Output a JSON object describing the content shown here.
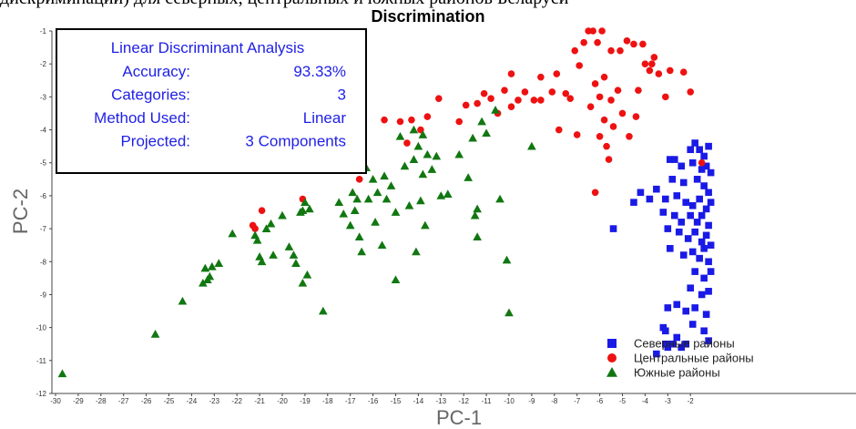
{
  "caption": "дискриминации) для северных, центральных и южных районов Беларуси",
  "chart_data": {
    "type": "scatter",
    "title": "Discrimination",
    "xlabel": "PC-1",
    "ylabel": "PC-2",
    "xlim": [
      -30,
      -1
    ],
    "ylim": [
      -12,
      -1
    ],
    "x_ticks": [
      -30,
      -29,
      -28,
      -27,
      -26,
      -25,
      -24,
      -23,
      -22,
      -21,
      -20,
      -19,
      -18,
      -17,
      -16,
      -15,
      -14,
      -13,
      -12,
      -11,
      -10,
      -9,
      -8,
      -7,
      -6,
      -5,
      -4,
      -3,
      -2
    ],
    "y_ticks": [
      -1,
      -2,
      -3,
      -4,
      -5,
      -6,
      -7,
      -8,
      -9,
      -10,
      -11,
      -12
    ],
    "grid": false,
    "legend_position": "bottom-right",
    "info_box": {
      "title": "Linear Discriminant Analysis",
      "rows": [
        {
          "label": "Accuracy:",
          "value": "93.33%"
        },
        {
          "label": "Categories:",
          "value": "3"
        },
        {
          "label": "Method Used:",
          "value": "Linear"
        },
        {
          "label": "Projected:",
          "value": "3 Components"
        }
      ]
    },
    "series": [
      {
        "name": "Северные районы",
        "marker": "square",
        "color": "#1a1ae6",
        "points": [
          [
            -2.9,
            -4.9
          ],
          [
            -2.7,
            -4.9
          ],
          [
            -2.4,
            -5.1
          ],
          [
            -2.0,
            -4.6
          ],
          [
            -1.8,
            -4.4
          ],
          [
            -1.6,
            -4.6
          ],
          [
            -1.4,
            -4.8
          ],
          [
            -1.2,
            -4.5
          ],
          [
            -1.9,
            -5.0
          ],
          [
            -1.5,
            -5.2
          ],
          [
            -1.3,
            -5.1
          ],
          [
            -1.1,
            -5.3
          ],
          [
            -2.8,
            -5.5
          ],
          [
            -2.3,
            -5.6
          ],
          [
            -1.7,
            -5.5
          ],
          [
            -1.4,
            -5.7
          ],
          [
            -1.2,
            -5.9
          ],
          [
            -3.5,
            -5.8
          ],
          [
            -3.1,
            -6.1
          ],
          [
            -2.6,
            -6.0
          ],
          [
            -2.2,
            -6.2
          ],
          [
            -1.9,
            -6.3
          ],
          [
            -1.6,
            -6.1
          ],
          [
            -1.3,
            -6.4
          ],
          [
            -1.1,
            -6.2
          ],
          [
            -4.2,
            -5.9
          ],
          [
            -3.8,
            -6.1
          ],
          [
            -4.5,
            -6.2
          ],
          [
            -3.2,
            -6.5
          ],
          [
            -2.7,
            -6.6
          ],
          [
            -2.4,
            -6.8
          ],
          [
            -2.0,
            -6.6
          ],
          [
            -1.7,
            -6.8
          ],
          [
            -1.5,
            -6.6
          ],
          [
            -1.2,
            -6.9
          ],
          [
            -3.0,
            -7.0
          ],
          [
            -2.5,
            -7.1
          ],
          [
            -2.1,
            -7.3
          ],
          [
            -1.8,
            -7.1
          ],
          [
            -1.5,
            -7.4
          ],
          [
            -1.3,
            -7.2
          ],
          [
            -1.1,
            -7.5
          ],
          [
            -5.4,
            -7.0
          ],
          [
            -2.9,
            -7.6
          ],
          [
            -2.3,
            -7.8
          ],
          [
            -1.9,
            -7.7
          ],
          [
            -1.6,
            -7.9
          ],
          [
            -1.4,
            -7.6
          ],
          [
            -1.2,
            -8.0
          ],
          [
            -1.8,
            -8.3
          ],
          [
            -1.4,
            -8.5
          ],
          [
            -1.1,
            -8.3
          ],
          [
            -2.0,
            -8.8
          ],
          [
            -1.5,
            -9.0
          ],
          [
            -1.2,
            -8.9
          ],
          [
            -3.0,
            -9.4
          ],
          [
            -2.6,
            -9.3
          ],
          [
            -2.2,
            -9.5
          ],
          [
            -1.8,
            -9.4
          ],
          [
            -1.3,
            -9.6
          ],
          [
            -1.9,
            -9.9
          ],
          [
            -1.4,
            -10.1
          ],
          [
            -3.2,
            -10.0
          ],
          [
            -3.1,
            -10.1
          ],
          [
            -3.1,
            -10.5
          ],
          [
            -2.8,
            -10.5
          ],
          [
            -2.6,
            -10.3
          ],
          [
            -2.4,
            -10.6
          ],
          [
            -2.2,
            -10.5
          ],
          [
            -3.5,
            -10.8
          ],
          [
            -3.0,
            -10.6
          ],
          [
            -1.2,
            -10.4
          ]
        ]
      },
      {
        "name": "Центральные районы",
        "marker": "circle",
        "color": "#ee1111",
        "points": [
          [
            -21.3,
            -6.9
          ],
          [
            -21.2,
            -7.0
          ],
          [
            -20.9,
            -6.45
          ],
          [
            -19.1,
            -6.1
          ],
          [
            -16.6,
            -5.5
          ],
          [
            -15.5,
            -3.7
          ],
          [
            -14.8,
            -3.75
          ],
          [
            -14.3,
            -3.7
          ],
          [
            -14.5,
            -4.4
          ],
          [
            -13.9,
            -4.0
          ],
          [
            -13.6,
            -3.6
          ],
          [
            -13.1,
            -3.05
          ],
          [
            -12.2,
            -3.75
          ],
          [
            -11.9,
            -3.25
          ],
          [
            -11.4,
            -3.2
          ],
          [
            -11.1,
            -2.9
          ],
          [
            -10.8,
            -3.05
          ],
          [
            -10.5,
            -3.5
          ],
          [
            -10.2,
            -2.8
          ],
          [
            -9.9,
            -3.3
          ],
          [
            -9.6,
            -3.1
          ],
          [
            -9.3,
            -2.85
          ],
          [
            -8.9,
            -3.1
          ],
          [
            -8.6,
            -3.1
          ],
          [
            -8.1,
            -2.85
          ],
          [
            -7.9,
            -2.3
          ],
          [
            -7.8,
            -4.0
          ],
          [
            -7.5,
            -2.9
          ],
          [
            -7.3,
            -3.05
          ],
          [
            -7.1,
            -1.6
          ],
          [
            -7.0,
            -4.15
          ],
          [
            -6.9,
            -2.05
          ],
          [
            -6.7,
            -1.35
          ],
          [
            -6.5,
            -1.0
          ],
          [
            -6.4,
            -3.3
          ],
          [
            -6.3,
            -1.0
          ],
          [
            -6.2,
            -2.6
          ],
          [
            -6.1,
            -1.35
          ],
          [
            -6.0,
            -3.0
          ],
          [
            -6.0,
            -4.2
          ],
          [
            -5.9,
            -1.0
          ],
          [
            -5.8,
            -2.4
          ],
          [
            -5.8,
            -3.7
          ],
          [
            -5.7,
            -4.5
          ],
          [
            -5.6,
            -4.9
          ],
          [
            -5.5,
            -3.1
          ],
          [
            -5.5,
            -1.6
          ],
          [
            -5.4,
            -3.9
          ],
          [
            -5.2,
            -2.8
          ],
          [
            -5.1,
            -1.6
          ],
          [
            -5.0,
            -3.5
          ],
          [
            -4.8,
            -1.3
          ],
          [
            -4.7,
            -4.2
          ],
          [
            -4.5,
            -1.4
          ],
          [
            -4.4,
            -3.6
          ],
          [
            -4.3,
            -2.8
          ],
          [
            -4.1,
            -1.4
          ],
          [
            -4.0,
            -2.0
          ],
          [
            -3.8,
            -2.2
          ],
          [
            -3.6,
            -1.8
          ],
          [
            -3.4,
            -2.3
          ],
          [
            -3.1,
            -3.0
          ],
          [
            -2.9,
            -2.2
          ],
          [
            -2.3,
            -2.25
          ],
          [
            -2.0,
            -2.85
          ],
          [
            -6.2,
            -5.9
          ],
          [
            -1.5,
            -5.0
          ],
          [
            -3.7,
            -2.0
          ],
          [
            -8.6,
            -2.4
          ],
          [
            -9.9,
            -2.3
          ]
        ]
      },
      {
        "name": "Южные районы",
        "marker": "triangle",
        "color": "#117711",
        "points": [
          [
            -29.7,
            -11.4
          ],
          [
            -25.6,
            -10.2
          ],
          [
            -24.4,
            -9.2
          ],
          [
            -23.5,
            -8.65
          ],
          [
            -23.3,
            -8.55
          ],
          [
            -23.2,
            -8.45
          ],
          [
            -23.4,
            -8.2
          ],
          [
            -23.1,
            -8.15
          ],
          [
            -22.8,
            -8.05
          ],
          [
            -22.2,
            -7.15
          ],
          [
            -21.2,
            -7.2
          ],
          [
            -21.1,
            -7.35
          ],
          [
            -21.0,
            -7.85
          ],
          [
            -20.9,
            -8.0
          ],
          [
            -20.7,
            -7.0
          ],
          [
            -20.5,
            -6.85
          ],
          [
            -20.4,
            -7.8
          ],
          [
            -20.0,
            -6.6
          ],
          [
            -19.7,
            -7.55
          ],
          [
            -19.5,
            -7.8
          ],
          [
            -19.4,
            -8.05
          ],
          [
            -19.2,
            -6.5
          ],
          [
            -19.1,
            -6.45
          ],
          [
            -19.1,
            -8.65
          ],
          [
            -19.0,
            -6.2
          ],
          [
            -18.9,
            -8.4
          ],
          [
            -18.8,
            -6.4
          ],
          [
            -18.2,
            -9.5
          ],
          [
            -17.5,
            -6.2
          ],
          [
            -17.3,
            -6.55
          ],
          [
            -17.0,
            -6.9
          ],
          [
            -17.0,
            -4.9
          ],
          [
            -16.9,
            -5.9
          ],
          [
            -16.8,
            -6.45
          ],
          [
            -16.7,
            -6.1
          ],
          [
            -16.6,
            -7.25
          ],
          [
            -16.5,
            -7.7
          ],
          [
            -16.3,
            -5.15
          ],
          [
            -16.2,
            -6.1
          ],
          [
            -16.0,
            -5.5
          ],
          [
            -15.9,
            -6.8
          ],
          [
            -15.8,
            -5.9
          ],
          [
            -15.6,
            -7.5
          ],
          [
            -15.5,
            -5.4
          ],
          [
            -15.4,
            -6.1
          ],
          [
            -15.2,
            -5.7
          ],
          [
            -15.0,
            -6.5
          ],
          [
            -15.0,
            -8.55
          ],
          [
            -14.8,
            -4.2
          ],
          [
            -14.6,
            -5.1
          ],
          [
            -14.4,
            -6.3
          ],
          [
            -14.2,
            -4.9
          ],
          [
            -14.1,
            -7.7
          ],
          [
            -14.0,
            -4.5
          ],
          [
            -13.9,
            -6.15
          ],
          [
            -13.8,
            -5.35
          ],
          [
            -13.7,
            -6.9
          ],
          [
            -13.6,
            -4.75
          ],
          [
            -13.4,
            -5.2
          ],
          [
            -13.2,
            -4.8
          ],
          [
            -13.0,
            -6.0
          ],
          [
            -12.7,
            -5.95
          ],
          [
            -12.2,
            -4.75
          ],
          [
            -11.8,
            -5.45
          ],
          [
            -11.6,
            -4.25
          ],
          [
            -11.5,
            -6.6
          ],
          [
            -11.4,
            -6.4
          ],
          [
            -11.4,
            -7.25
          ],
          [
            -11.2,
            -3.75
          ],
          [
            -11.0,
            -4.1
          ],
          [
            -10.6,
            -3.4
          ],
          [
            -10.4,
            -6.1
          ],
          [
            -10.1,
            -7.95
          ],
          [
            -10.0,
            -9.55
          ],
          [
            -9.0,
            -4.5
          ],
          [
            -13.8,
            -4.15
          ],
          [
            -14.2,
            -4.0
          ]
        ]
      }
    ]
  }
}
